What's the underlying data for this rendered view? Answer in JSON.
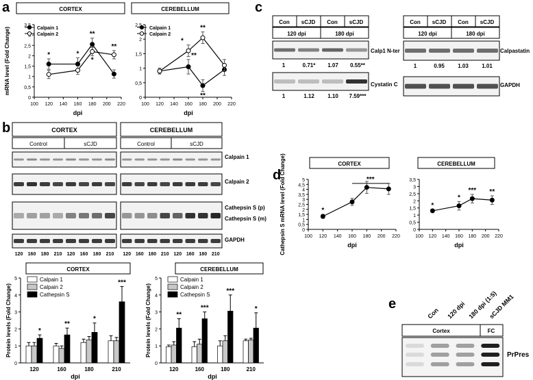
{
  "panel_labels": {
    "a": "a",
    "b": "b",
    "c": "c",
    "d": "d",
    "e": "e"
  },
  "chart_data": [
    {
      "panel": "a-left",
      "type": "line",
      "title": "CORTEX",
      "xlabel": "dpi",
      "ylabel": "mRNA level (Fold Change)",
      "xlim": [
        100,
        220
      ],
      "ylim": [
        0,
        3.5
      ],
      "xticks": [
        100,
        120,
        140,
        160,
        180,
        200,
        220
      ],
      "yticks": [
        0,
        0.5,
        1,
        1.5,
        2,
        2.5,
        3,
        3.5
      ],
      "ytick_labels": [
        "0",
        "0,5",
        "1",
        "1,5",
        "2",
        "2,5",
        "3",
        "3,5"
      ],
      "series": [
        {
          "name": "Calpain 1",
          "marker": "filled",
          "x": [
            120,
            160,
            180,
            210
          ],
          "y": [
            1.6,
            1.6,
            2.55,
            1.12
          ],
          "err": [
            0.25,
            0.3,
            0.3,
            0.2
          ],
          "sig": [
            "*",
            "*",
            "**",
            ""
          ]
        },
        {
          "name": "Calpain 2",
          "marker": "open",
          "x": [
            120,
            160,
            180,
            210
          ],
          "y": [
            1.1,
            1.3,
            2.2,
            2.05
          ],
          "err": [
            0.2,
            0.2,
            0.2,
            0.2
          ],
          "sig": [
            "",
            "",
            "*",
            "**"
          ]
        }
      ]
    },
    {
      "panel": "a-right",
      "type": "line",
      "title": "CEREBELLUM",
      "xlabel": "dpi",
      "ylabel": "",
      "xlim": [
        100,
        220
      ],
      "ylim": [
        0,
        2.5
      ],
      "xticks": [
        100,
        120,
        140,
        160,
        180,
        200,
        220
      ],
      "yticks": [
        0,
        0.5,
        1,
        1.5,
        2,
        2.5
      ],
      "ytick_labels": [
        "0",
        "0,5",
        "1",
        "1,5",
        "2",
        "2,5"
      ],
      "series": [
        {
          "name": "Calpain 1",
          "marker": "filled",
          "x": [
            120,
            160,
            180,
            210
          ],
          "y": [
            0.9,
            1.05,
            0.4,
            0.95
          ],
          "err": [
            0.1,
            0.25,
            0.2,
            0.2
          ],
          "sig": [
            "",
            "**",
            "**",
            ""
          ]
        },
        {
          "name": "Calpain 2",
          "marker": "open",
          "x": [
            120,
            160,
            180,
            210
          ],
          "y": [
            0.9,
            1.6,
            2.05,
            1.1
          ],
          "err": [
            0.1,
            0.2,
            0.2,
            0.2
          ],
          "sig": [
            "",
            "*",
            "**",
            ""
          ]
        }
      ]
    },
    {
      "panel": "b-cortex",
      "type": "bar",
      "title": "CORTEX",
      "xlabel": "dpi",
      "ylabel": "Protein levels (Fold Change)",
      "categories": [
        "120",
        "160",
        "180",
        "210"
      ],
      "ylim": [
        0,
        5
      ],
      "yticks": [
        0,
        1,
        2,
        3,
        4,
        5
      ],
      "series": [
        {
          "name": "Calpain 1",
          "color": "#ffffff",
          "values": [
            1.0,
            1.0,
            1.2,
            1.3
          ],
          "err": [
            0.2,
            0.15,
            0.2,
            0.3
          ]
        },
        {
          "name": "Calpain 2",
          "color": "#c8c8c8",
          "values": [
            1.0,
            0.85,
            1.35,
            1.3
          ],
          "err": [
            0.2,
            0.15,
            0.2,
            0.2
          ]
        },
        {
          "name": "Cathepsin S",
          "color": "#000000",
          "values": [
            1.45,
            1.65,
            1.8,
            3.6
          ],
          "err": [
            0.2,
            0.4,
            0.55,
            0.9
          ]
        }
      ],
      "sig": [
        "*",
        "**",
        "*",
        "***"
      ]
    },
    {
      "panel": "b-cerebellum",
      "type": "bar",
      "title": "CEREBELLUM",
      "xlabel": "dpi",
      "ylabel": "Protein levels (Fold Change)",
      "categories": [
        "120",
        "160",
        "180",
        "210"
      ],
      "ylim": [
        0,
        5
      ],
      "yticks": [
        0,
        1,
        2,
        3,
        4,
        5
      ],
      "series": [
        {
          "name": "Calpain 1",
          "color": "#ffffff",
          "values": [
            0.95,
            0.95,
            1.0,
            1.3
          ],
          "err": [
            0.1,
            0.3,
            0.3,
            0.1
          ]
        },
        {
          "name": "Calpain 2",
          "color": "#c8c8c8",
          "values": [
            1.05,
            1.1,
            1.3,
            1.35
          ],
          "err": [
            0.2,
            0.3,
            0.3,
            0.1
          ]
        },
        {
          "name": "Cathepsin S",
          "color": "#000000",
          "values": [
            2.05,
            2.6,
            3.05,
            2.05
          ],
          "err": [
            0.55,
            0.4,
            0.95,
            0.9
          ]
        }
      ],
      "sig": [
        "**",
        "***",
        "***",
        "*"
      ]
    },
    {
      "panel": "d-cortex",
      "type": "line",
      "title": "CORTEX",
      "xlabel": "dpi",
      "ylabel": "Cathepsin S mRNA level (Fold Change)",
      "xlim": [
        100,
        220
      ],
      "ylim": [
        0,
        5
      ],
      "xticks": [
        100,
        120,
        140,
        160,
        180,
        200,
        220
      ],
      "yticks": [
        0,
        0.5,
        1,
        1.5,
        2,
        2.5,
        3,
        3.5,
        4,
        4.5,
        5
      ],
      "ytick_labels": [
        "0",
        "0,5",
        "1",
        "1,5",
        "2",
        "2,5",
        "3",
        "3,5",
        "4",
        "4,5",
        "5"
      ],
      "series": [
        {
          "name": "Cathepsin S",
          "marker": "filled",
          "x": [
            120,
            160,
            180,
            210
          ],
          "y": [
            1.3,
            2.75,
            4.2,
            4.05
          ],
          "err": [
            0.2,
            0.35,
            0.6,
            0.55
          ],
          "sig": [
            "*",
            "",
            "",
            ""
          ]
        }
      ],
      "bracket": {
        "x1": 160,
        "x2": 210,
        "y": 4.6,
        "label": "***"
      }
    },
    {
      "panel": "d-cerebellum",
      "type": "line",
      "title": "CEREBELLUM",
      "xlabel": "dpi",
      "ylabel": "",
      "xlim": [
        100,
        220
      ],
      "ylim": [
        0,
        3.5
      ],
      "xticks": [
        100,
        120,
        140,
        160,
        180,
        200,
        220
      ],
      "yticks": [
        0,
        0.5,
        1,
        1.5,
        2,
        2.5,
        3,
        3.5
      ],
      "ytick_labels": [
        "0",
        "0,5",
        "1",
        "1,5",
        "2",
        "2,5",
        "3",
        "3,5"
      ],
      "series": [
        {
          "name": "Cathepsin S",
          "marker": "filled",
          "x": [
            120,
            160,
            180,
            210
          ],
          "y": [
            1.3,
            1.65,
            2.15,
            2.05
          ],
          "err": [
            0.1,
            0.3,
            0.3,
            0.3
          ],
          "sig": [
            "*",
            "*",
            "***",
            "**"
          ]
        }
      ]
    }
  ],
  "blots": {
    "b_groups": {
      "cortex": "CORTEX",
      "cerebellum": "CEREBELLUM"
    },
    "b_conditions": [
      "Control",
      "sCJD"
    ],
    "b_bands": [
      "Calpain 1",
      "Calpain 2",
      "Cathepsin S (p)",
      "Cathepsin S (m)",
      "GAPDH"
    ],
    "b_lane_labels": [
      "120",
      "160",
      "180",
      "210",
      "120",
      "160",
      "180",
      "210"
    ],
    "c_headers": [
      "Con",
      "sCJD",
      "Con",
      "sCJD"
    ],
    "c_dpi": [
      "120 dpi",
      "180 dpi"
    ],
    "c_left_bands": [
      "Calp1 N-ter",
      "Cystatin C"
    ],
    "c_left_values_calp1": [
      "1",
      "0.71*",
      "1.07",
      "0.55**"
    ],
    "c_left_values_cystatin": [
      "1",
      "1.12",
      "1.10",
      "7.59***"
    ],
    "c_right_bands": [
      "Calpastatin",
      "GAPDH"
    ],
    "c_right_values": [
      "1",
      "0.95",
      "1.03",
      "1.01"
    ],
    "e_lanes": [
      "Con",
      "120 dpi",
      "180 dpi (1:5)",
      "sCJD MM1"
    ],
    "e_groups": [
      "Cortex",
      "FC"
    ],
    "e_band": "PrPres"
  }
}
